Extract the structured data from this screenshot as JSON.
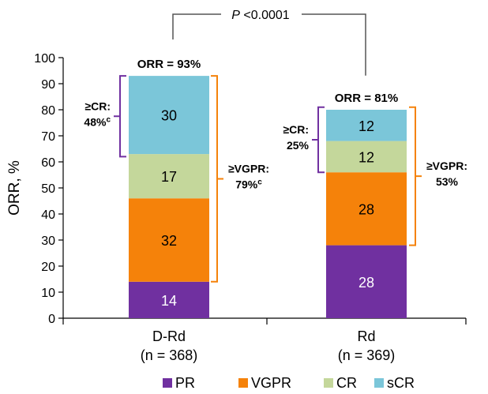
{
  "chart_data": {
    "type": "bar",
    "stacked": true,
    "ylabel": "ORR, %",
    "ylim": [
      0,
      100
    ],
    "yticks": [
      0,
      10,
      20,
      30,
      40,
      50,
      60,
      70,
      80,
      90,
      100
    ],
    "categories": [
      {
        "name": "D-Rd",
        "n": "(n = 368)"
      },
      {
        "name": "Rd",
        "n": "(n = 369)"
      }
    ],
    "series": [
      {
        "name": "PR",
        "color": "#7030A0",
        "label_color": "#ffffff",
        "values": [
          14,
          28
        ]
      },
      {
        "name": "VGPR",
        "color": "#F5820A",
        "label_color": "#000000",
        "values": [
          32,
          28
        ]
      },
      {
        "name": "CR",
        "color": "#C4D79B",
        "label_color": "#000000",
        "values": [
          17,
          12
        ]
      },
      {
        "name": "sCR",
        "color": "#7BC6D9",
        "label_color": "#000000",
        "values": [
          30,
          12
        ]
      }
    ],
    "orr_labels": [
      "ORR = 93%",
      "ORR = 81%"
    ],
    "pvalue": {
      "p": "P",
      "text": " <0.0001"
    },
    "annotations": {
      "cr": [
        {
          "line1": "≥CR:",
          "line2": "48%",
          "sup": "c",
          "range": [
            62,
            93
          ],
          "color": "#7030A0"
        },
        {
          "line1": "≥CR:",
          "line2": "25%",
          "sup": "",
          "range": [
            56,
            81
          ],
          "color": "#7030A0"
        }
      ],
      "vgpr": [
        {
          "line1": "≥VGPR:",
          "line2": "79%",
          "sup": "c",
          "range": [
            14,
            93
          ],
          "color": "#F5820A"
        },
        {
          "line1": "≥VGPR:",
          "line2": "53%",
          "sup": "",
          "range": [
            28,
            81
          ],
          "color": "#F5820A"
        }
      ]
    },
    "legend_position": "bottom"
  }
}
